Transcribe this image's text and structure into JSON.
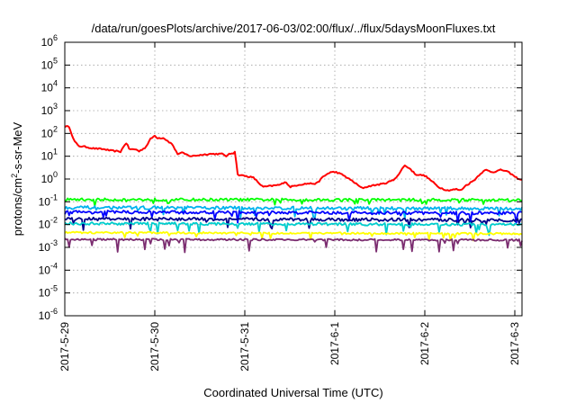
{
  "chart_data": {
    "type": "line",
    "title": "/data/run/goesPlots/archive/2017-06-03/02:00/flux/../flux/5daysMoonFluxes.txt",
    "xlabel": "Coordinated Universal Time (UTC)",
    "ylabel": {
      "prefix": "protons/cm",
      "sup": "2",
      "suffix": "-s-sr-MeV"
    },
    "x_unit": "days since 2017-5-29 00:00 UTC",
    "xlim": [
      0,
      5.08
    ],
    "ylim_exponent": [
      -6,
      6
    ],
    "yscale": "log",
    "grid": true,
    "legend": "none",
    "x_ticks": [
      {
        "value": 0,
        "label": "2017-5-29"
      },
      {
        "value": 1,
        "label": "2017-5-30"
      },
      {
        "value": 2,
        "label": "2017-5-31"
      },
      {
        "value": 3,
        "label": "2017-6-1"
      },
      {
        "value": 4,
        "label": "2017-6-2"
      },
      {
        "value": 5,
        "label": "2017-6-3"
      }
    ],
    "y_ticks": [
      {
        "exp": -6,
        "base": "10",
        "sup": "-6"
      },
      {
        "exp": -5,
        "base": "10",
        "sup": "-5"
      },
      {
        "exp": -4,
        "base": "10",
        "sup": "-4"
      },
      {
        "exp": -3,
        "base": "10",
        "sup": "-3"
      },
      {
        "exp": -2,
        "base": "10",
        "sup": "-2"
      },
      {
        "exp": -1,
        "base": "10",
        "sup": "-1"
      },
      {
        "exp": 0,
        "base": "10",
        "sup": "0"
      },
      {
        "exp": 1,
        "base": "10",
        "sup": "1"
      },
      {
        "exp": 2,
        "base": "10",
        "sup": "2"
      },
      {
        "exp": 3,
        "base": "10",
        "sup": "3"
      },
      {
        "exp": 4,
        "base": "10",
        "sup": "4"
      },
      {
        "exp": 5,
        "base": "10",
        "sup": "5"
      },
      {
        "exp": 6,
        "base": "10",
        "sup": "6"
      }
    ],
    "series": [
      {
        "color": "#ff0000",
        "noise": 0.03,
        "spike_amp": 0,
        "points": [
          [
            0,
            2.3
          ],
          [
            0.05,
            2.3
          ],
          [
            0.1,
            1.7
          ],
          [
            0.15,
            1.45
          ],
          [
            0.25,
            1.4
          ],
          [
            0.3,
            1.35
          ],
          [
            0.45,
            1.3
          ],
          [
            0.5,
            1.25
          ],
          [
            0.62,
            1.2
          ],
          [
            0.68,
            1.6
          ],
          [
            0.72,
            1.3
          ],
          [
            0.8,
            1.3
          ],
          [
            0.82,
            1.2
          ],
          [
            0.9,
            1.4
          ],
          [
            0.95,
            1.75
          ],
          [
            1.0,
            1.9
          ],
          [
            1.03,
            1.8
          ],
          [
            1.1,
            1.8
          ],
          [
            1.2,
            1.5
          ],
          [
            1.25,
            1.1
          ],
          [
            1.3,
            1.15
          ],
          [
            1.4,
            1.0
          ],
          [
            1.5,
            1.05
          ],
          [
            1.6,
            1.1
          ],
          [
            1.75,
            1.1
          ],
          [
            1.8,
            1.0
          ],
          [
            1.83,
            1.1
          ],
          [
            1.88,
            1.15
          ],
          [
            1.9,
            1.3
          ],
          [
            1.91,
            0.2
          ],
          [
            2.05,
            0.1
          ],
          [
            2.1,
            0.05
          ],
          [
            2.2,
            -0.35
          ],
          [
            2.3,
            -0.3
          ],
          [
            2.4,
            -0.25
          ],
          [
            2.45,
            -0.1
          ],
          [
            2.5,
            -0.35
          ],
          [
            2.6,
            -0.25
          ],
          [
            2.7,
            -0.2
          ],
          [
            2.8,
            -0.2
          ],
          [
            2.87,
            0.1
          ],
          [
            2.95,
            0.3
          ],
          [
            3.02,
            0.3
          ],
          [
            3.1,
            0.15
          ],
          [
            3.2,
            -0.1
          ],
          [
            3.3,
            -0.4
          ],
          [
            3.4,
            -0.3
          ],
          [
            3.55,
            -0.2
          ],
          [
            3.65,
            -0.05
          ],
          [
            3.72,
            0.25
          ],
          [
            3.77,
            0.6
          ],
          [
            3.82,
            0.5
          ],
          [
            3.9,
            0.2
          ],
          [
            4.0,
            0.15
          ],
          [
            4.08,
            -0.1
          ],
          [
            4.15,
            -0.35
          ],
          [
            4.25,
            -0.5
          ],
          [
            4.35,
            -0.45
          ],
          [
            4.4,
            -0.5
          ],
          [
            4.45,
            -0.3
          ],
          [
            4.55,
            -0.05
          ],
          [
            4.62,
            0.25
          ],
          [
            4.68,
            0.4
          ],
          [
            4.75,
            0.3
          ],
          [
            4.85,
            0.4
          ],
          [
            4.9,
            0.35
          ],
          [
            4.95,
            0.25
          ],
          [
            5.0,
            0.1
          ],
          [
            5.05,
            0.0
          ],
          [
            5.08,
            -0.05
          ]
        ]
      },
      {
        "color": "#00ff00",
        "noise": 0.06,
        "spike_amp": 0.35,
        "points": [
          [
            0,
            -0.9
          ],
          [
            5.08,
            -0.92
          ]
        ]
      },
      {
        "color": "#00b2ee",
        "noise": 0.07,
        "spike_amp": 0.4,
        "points": [
          [
            0,
            -1.25
          ],
          [
            5.08,
            -1.3
          ]
        ]
      },
      {
        "color": "#0000ff",
        "noise": 0.07,
        "spike_amp": 0.45,
        "points": [
          [
            0,
            -1.45
          ],
          [
            5.08,
            -1.5
          ]
        ]
      },
      {
        "color": "#00008b",
        "noise": 0.07,
        "spike_amp": 0.45,
        "points": [
          [
            0,
            -1.75
          ],
          [
            5.08,
            -1.8
          ]
        ]
      },
      {
        "color": "#00cdcd",
        "noise": 0.06,
        "spike_amp": 0.45,
        "points": [
          [
            0,
            -1.95
          ],
          [
            5.08,
            -2.0
          ]
        ]
      },
      {
        "color": "#ffff00",
        "noise": 0.04,
        "spike_amp": 0.3,
        "points": [
          [
            0,
            -2.35
          ],
          [
            5.08,
            -2.4
          ]
        ]
      },
      {
        "color": "#7b2d70",
        "noise": 0.04,
        "spike_amp": 0.6,
        "points": [
          [
            0,
            -2.65
          ],
          [
            5.08,
            -2.68
          ]
        ]
      }
    ]
  }
}
